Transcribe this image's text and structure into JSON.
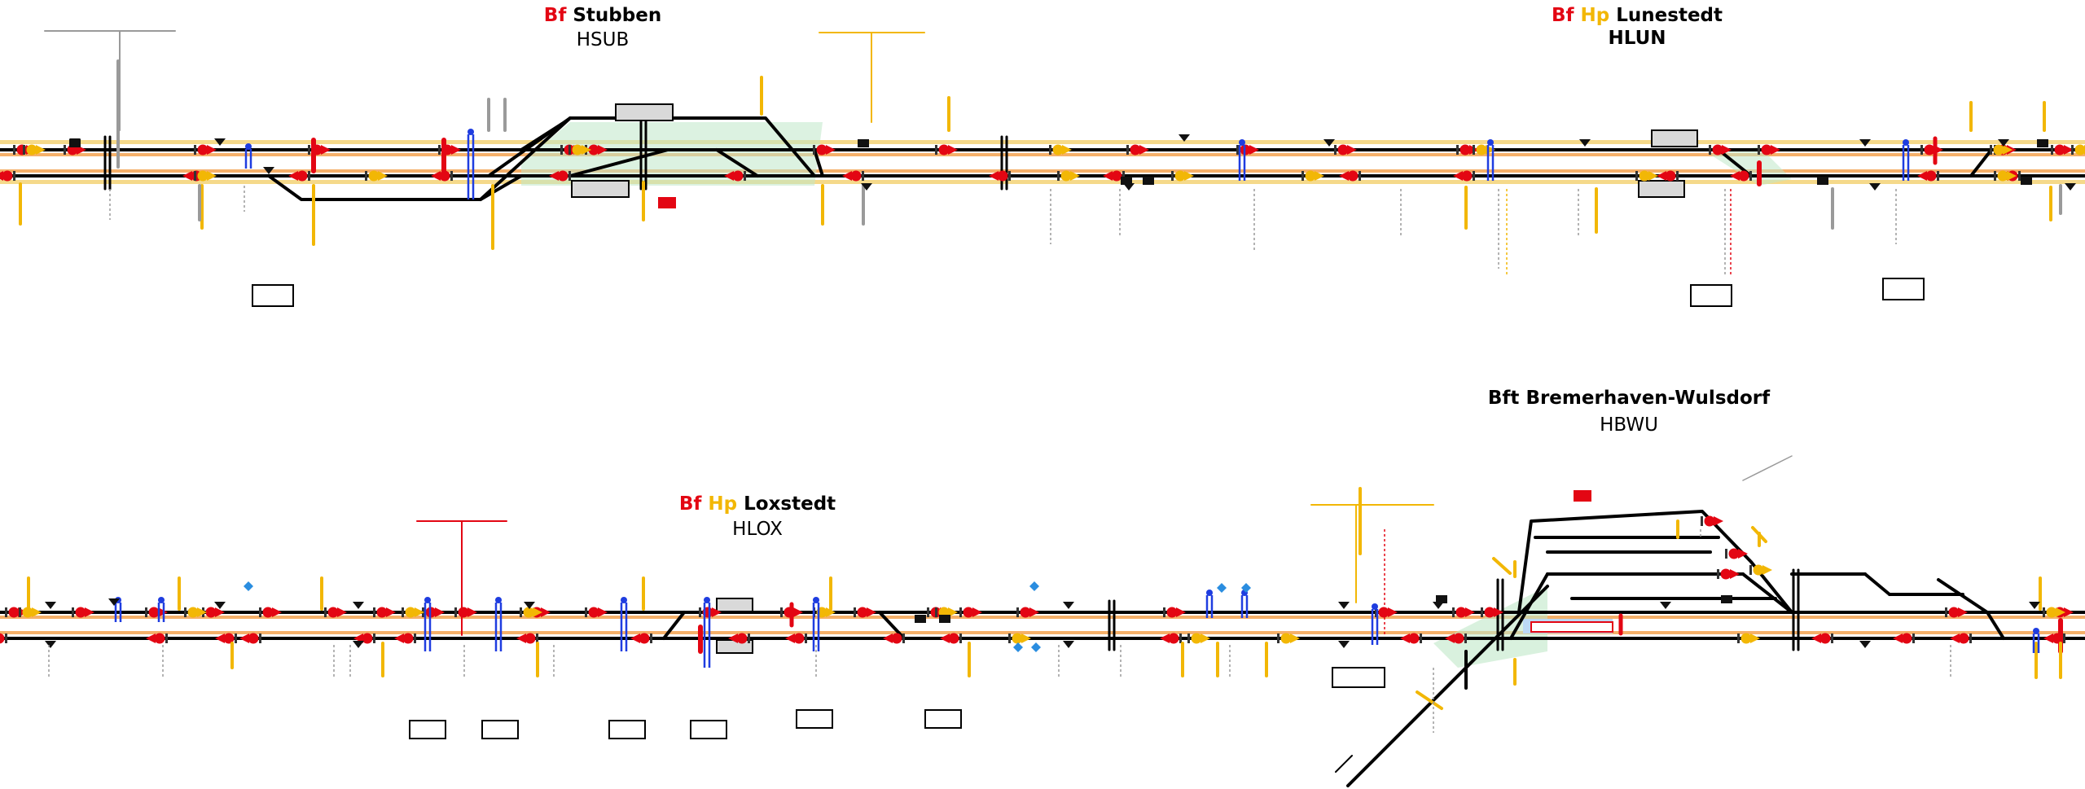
{
  "stations": [
    {
      "id": "stubben",
      "prefix": "Bf",
      "hp": "",
      "name": "Stubben",
      "code": "HSUB",
      "code_bold": false
    },
    {
      "id": "lunestedt",
      "prefix": "Bf",
      "hp": "Hp",
      "name": "Lunestedt",
      "code": "HLUN",
      "code_bold": true
    },
    {
      "id": "loxstedt",
      "prefix": "Bf",
      "hp": "Hp",
      "name": "Loxstedt",
      "code": "HLOX",
      "code_bold": false
    },
    {
      "id": "wulsdorf",
      "prefix": "Bft",
      "hp": "",
      "name": "Bremerhaven-Wulsdorf",
      "code": "HBWU",
      "code_bold": false
    }
  ],
  "colors": {
    "track": "#000000",
    "signal_main": "#e30613",
    "signal_distant": "#f2b705",
    "balise": "#1f3de0",
    "platform": "#d9d9d9",
    "area_highlight": "#bfe8c8",
    "orange_band": "#f5b06a",
    "label_grey": "#9a9a9a"
  }
}
